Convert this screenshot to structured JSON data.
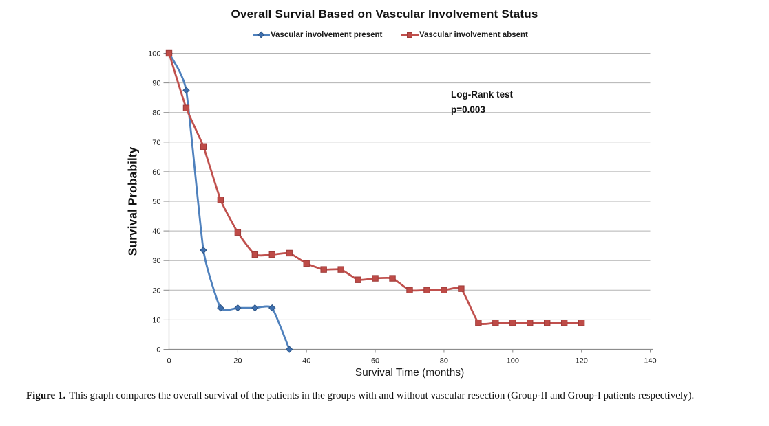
{
  "annotation": {
    "line1": "Log-Rank test",
    "line2": "p=0.003"
  },
  "caption": {
    "label": "Figure 1.",
    "text": "This graph compares the overall survival of the patients in the groups with and without vascular resection (Group-II and Group-I patients respectively)."
  },
  "chart_data": {
    "type": "line",
    "title": "Overall Survial Based on Vascular Involvement Status",
    "xlabel": "Survival Time (months)",
    "ylabel": "Survival Probabilty",
    "xlim": [
      0,
      140
    ],
    "ylim": [
      0,
      100
    ],
    "x_ticks": [
      0,
      20,
      40,
      60,
      80,
      100,
      120,
      140
    ],
    "y_ticks": [
      0,
      10,
      20,
      30,
      40,
      50,
      60,
      70,
      80,
      90,
      100
    ],
    "grid": true,
    "legend_position": "top",
    "line_style": "smoothed",
    "colors": {
      "gridline": "#b3b3b3",
      "axis": "#8c8c8c",
      "text": "#1a1a1a"
    },
    "series": [
      {
        "name": "Vascular involvement present",
        "marker": "diamond",
        "color": "#4f81bd",
        "marker_color": "#3e6fae",
        "marker_edge": "#2d5586",
        "x": [
          0,
          5,
          10,
          15,
          20,
          25,
          30,
          35
        ],
        "y": [
          100,
          87.5,
          33.5,
          14,
          14,
          14,
          14,
          0
        ]
      },
      {
        "name": "Vascular involvement absent",
        "marker": "square",
        "color": "#c0504d",
        "marker_color": "#be4b47",
        "marker_edge": "#9e3b39",
        "x": [
          0,
          5,
          10,
          15,
          20,
          25,
          30,
          35,
          40,
          45,
          50,
          55,
          60,
          65,
          70,
          75,
          80,
          85,
          90,
          95,
          100,
          105,
          110,
          115,
          120
        ],
        "y": [
          100,
          81.5,
          68.5,
          50.5,
          39.5,
          32,
          32,
          32.5,
          29,
          27,
          27,
          23.5,
          24,
          24,
          20,
          20,
          20,
          20.5,
          9,
          9,
          9,
          9,
          9,
          9,
          9
        ]
      }
    ]
  }
}
